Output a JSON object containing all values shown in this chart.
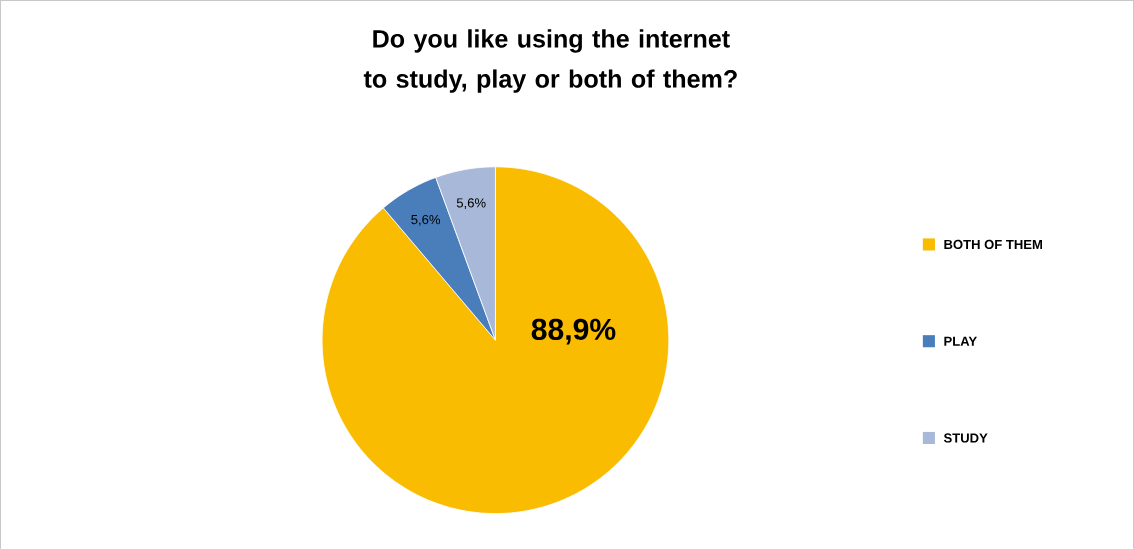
{
  "chart_data": {
    "type": "pie",
    "title": "Do you like using the internet to study, play or both of them?",
    "categories": [
      "BOTH OF THEM",
      "PLAY",
      "STUDY"
    ],
    "values": [
      88.9,
      5.6,
      5.6
    ],
    "colors": [
      "#f9bc00",
      "#4a7ebb",
      "#a7b8d8"
    ],
    "value_labels": [
      "88,9%",
      "5,6%",
      "5,6%"
    ],
    "legend": "right"
  }
}
